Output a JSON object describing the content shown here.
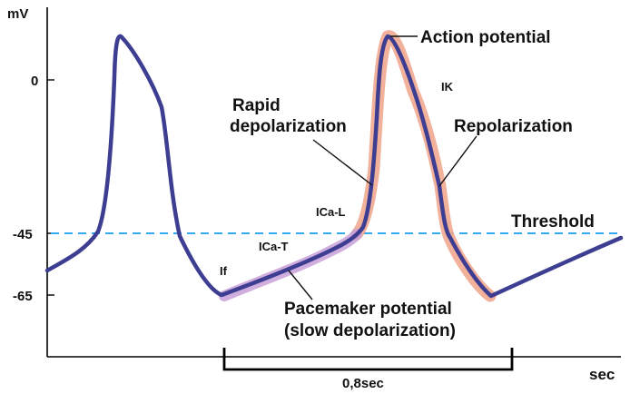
{
  "axes": {
    "y_unit": "mV",
    "x_unit": "sec",
    "y_ticks": [
      "0",
      "-45",
      "-65"
    ]
  },
  "labels": {
    "action_potential": "Action potential",
    "ik": "IK",
    "rapid_line1": "Rapid",
    "rapid_line2": "depolarization",
    "repolarization": "Repolarization",
    "threshold": "Threshold",
    "ica_l": "ICa-L",
    "ica_t": "ICa-T",
    "if": "If",
    "pacemaker_line1": "Pacemaker potential",
    "pacemaker_line2": "(slow depolarization)",
    "duration": "0,8sec"
  },
  "colors": {
    "trace": "#3d3d91",
    "threshold_line": "#33aaee",
    "highlight_action": "#f0a890",
    "highlight_pacemaker": "#c8a0d8",
    "axis": "#000000"
  }
}
